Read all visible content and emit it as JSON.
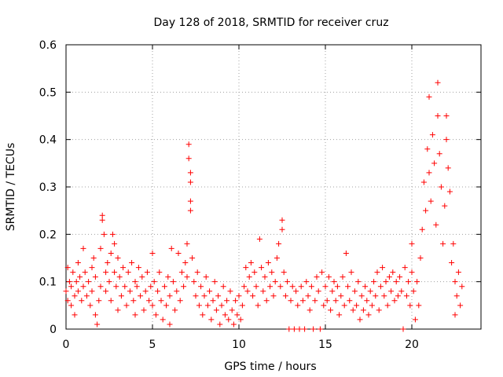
{
  "chart_data": {
    "type": "scatter",
    "title": "Day 128 of 2018, SRMTID for receiver cruz",
    "xlabel": "GPS time / hours",
    "ylabel": "SRMTID / TECUs",
    "xlim": [
      0,
      24
    ],
    "ylim": [
      0,
      0.6
    ],
    "grid": true,
    "xticks": [
      0,
      5,
      10,
      15,
      20
    ],
    "xtick_labels": [
      "0",
      "5",
      "10",
      "15",
      "20"
    ],
    "yticks": [
      0,
      0.1,
      0.2,
      0.3,
      0.4,
      0.5,
      0.6
    ],
    "ytick_labels": [
      "0",
      "0.1",
      "0.2",
      "0.3",
      "0.4",
      "0.5",
      "0.6"
    ],
    "marker": "plus",
    "marker_color": "#ff0000",
    "series": [
      {
        "name": "SRMTID",
        "points": [
          [
            0.0,
            0.08
          ],
          [
            0.1,
            0.13
          ],
          [
            0.1,
            0.06
          ],
          [
            0.2,
            0.1
          ],
          [
            0.3,
            0.05
          ],
          [
            0.3,
            0.09
          ],
          [
            0.4,
            0.12
          ],
          [
            0.5,
            0.07
          ],
          [
            0.5,
            0.03
          ],
          [
            0.6,
            0.1
          ],
          [
            0.7,
            0.14
          ],
          [
            0.7,
            0.08
          ],
          [
            0.8,
            0.11
          ],
          [
            0.9,
            0.06
          ],
          [
            1.0,
            0.17
          ],
          [
            1.0,
            0.09
          ],
          [
            1.1,
            0.12
          ],
          [
            1.2,
            0.07
          ],
          [
            1.3,
            0.1
          ],
          [
            1.4,
            0.05
          ],
          [
            1.5,
            0.13
          ],
          [
            1.5,
            0.08
          ],
          [
            1.6,
            0.15
          ],
          [
            1.7,
            0.03
          ],
          [
            1.7,
            0.11
          ],
          [
            1.8,
            0.01
          ],
          [
            1.9,
            0.06
          ],
          [
            2.0,
            0.09
          ],
          [
            2.0,
            0.17
          ],
          [
            2.1,
            0.24
          ],
          [
            2.1,
            0.23
          ],
          [
            2.2,
            0.2
          ],
          [
            2.3,
            0.12
          ],
          [
            2.3,
            0.08
          ],
          [
            2.4,
            0.14
          ],
          [
            2.5,
            0.1
          ],
          [
            2.6,
            0.16
          ],
          [
            2.6,
            0.06
          ],
          [
            2.7,
            0.2
          ],
          [
            2.8,
            0.18
          ],
          [
            2.8,
            0.12
          ],
          [
            2.9,
            0.09
          ],
          [
            3.0,
            0.15
          ],
          [
            3.0,
            0.04
          ],
          [
            3.1,
            0.11
          ],
          [
            3.2,
            0.07
          ],
          [
            3.3,
            0.13
          ],
          [
            3.4,
            0.09
          ],
          [
            3.5,
            0.05
          ],
          [
            3.6,
            0.12
          ],
          [
            3.7,
            0.08
          ],
          [
            3.8,
            0.14
          ],
          [
            3.9,
            0.06
          ],
          [
            4.0,
            0.1
          ],
          [
            4.0,
            0.03
          ],
          [
            4.1,
            0.09
          ],
          [
            4.2,
            0.13
          ],
          [
            4.3,
            0.07
          ],
          [
            4.4,
            0.11
          ],
          [
            4.5,
            0.04
          ],
          [
            4.6,
            0.08
          ],
          [
            4.7,
            0.12
          ],
          [
            4.8,
            0.06
          ],
          [
            4.9,
            0.09
          ],
          [
            5.0,
            0.16
          ],
          [
            5.0,
            0.05
          ],
          [
            5.1,
            0.1
          ],
          [
            5.2,
            0.03
          ],
          [
            5.3,
            0.08
          ],
          [
            5.4,
            0.12
          ],
          [
            5.5,
            0.06
          ],
          [
            5.6,
            0.02
          ],
          [
            5.7,
            0.09
          ],
          [
            5.8,
            0.05
          ],
          [
            5.9,
            0.11
          ],
          [
            6.0,
            0.01
          ],
          [
            6.0,
            0.07
          ],
          [
            6.1,
            0.17
          ],
          [
            6.2,
            0.1
          ],
          [
            6.3,
            0.04
          ],
          [
            6.4,
            0.08
          ],
          [
            6.5,
            0.16
          ],
          [
            6.6,
            0.06
          ],
          [
            6.7,
            0.12
          ],
          [
            6.8,
            0.09
          ],
          [
            6.9,
            0.14
          ],
          [
            7.0,
            0.18
          ],
          [
            7.0,
            0.11
          ],
          [
            7.1,
            0.39
          ],
          [
            7.1,
            0.36
          ],
          [
            7.2,
            0.33
          ],
          [
            7.2,
            0.27
          ],
          [
            7.2,
            0.25
          ],
          [
            7.2,
            0.31
          ],
          [
            7.3,
            0.15
          ],
          [
            7.4,
            0.1
          ],
          [
            7.5,
            0.07
          ],
          [
            7.6,
            0.12
          ],
          [
            7.7,
            0.05
          ],
          [
            7.8,
            0.09
          ],
          [
            7.9,
            0.03
          ],
          [
            8.0,
            0.07
          ],
          [
            8.1,
            0.11
          ],
          [
            8.2,
            0.05
          ],
          [
            8.3,
            0.08
          ],
          [
            8.4,
            0.02
          ],
          [
            8.5,
            0.06
          ],
          [
            8.6,
            0.1
          ],
          [
            8.7,
            0.04
          ],
          [
            8.8,
            0.07
          ],
          [
            8.9,
            0.01
          ],
          [
            9.0,
            0.05
          ],
          [
            9.1,
            0.09
          ],
          [
            9.2,
            0.03
          ],
          [
            9.3,
            0.06
          ],
          [
            9.4,
            0.02
          ],
          [
            9.5,
            0.08
          ],
          [
            9.6,
            0.04
          ],
          [
            9.7,
            0.01
          ],
          [
            9.8,
            0.06
          ],
          [
            9.9,
            0.03
          ],
          [
            10.0,
            0.07
          ],
          [
            10.1,
            0.02
          ],
          [
            10.2,
            0.05
          ],
          [
            10.3,
            0.09
          ],
          [
            10.4,
            0.13
          ],
          [
            10.5,
            0.08
          ],
          [
            10.6,
            0.11
          ],
          [
            10.7,
            0.14
          ],
          [
            10.8,
            0.07
          ],
          [
            10.9,
            0.12
          ],
          [
            11.0,
            0.09
          ],
          [
            11.1,
            0.05
          ],
          [
            11.2,
            0.19
          ],
          [
            11.3,
            0.13
          ],
          [
            11.4,
            0.08
          ],
          [
            11.5,
            0.11
          ],
          [
            11.6,
            0.06
          ],
          [
            11.7,
            0.14
          ],
          [
            11.8,
            0.09
          ],
          [
            11.9,
            0.12
          ],
          [
            12.0,
            0.07
          ],
          [
            12.1,
            0.1
          ],
          [
            12.2,
            0.15
          ],
          [
            12.3,
            0.18
          ],
          [
            12.4,
            0.09
          ],
          [
            12.5,
            0.21
          ],
          [
            12.5,
            0.23
          ],
          [
            12.6,
            0.12
          ],
          [
            12.7,
            0.07
          ],
          [
            12.8,
            0.1
          ],
          [
            12.9,
            0.0
          ],
          [
            13.0,
            0.06
          ],
          [
            13.1,
            0.09
          ],
          [
            13.2,
            0.0
          ],
          [
            13.3,
            0.08
          ],
          [
            13.4,
            0.05
          ],
          [
            13.5,
            0.0
          ],
          [
            13.6,
            0.09
          ],
          [
            13.7,
            0.06
          ],
          [
            13.8,
            0.0
          ],
          [
            13.9,
            0.1
          ],
          [
            14.0,
            0.07
          ],
          [
            14.1,
            0.04
          ],
          [
            14.2,
            0.09
          ],
          [
            14.3,
            0.0
          ],
          [
            14.4,
            0.06
          ],
          [
            14.5,
            0.11
          ],
          [
            14.6,
            0.08
          ],
          [
            14.7,
            0.0
          ],
          [
            14.8,
            0.12
          ],
          [
            14.9,
            0.05
          ],
          [
            15.0,
            0.09
          ],
          [
            15.1,
            0.06
          ],
          [
            15.2,
            0.11
          ],
          [
            15.3,
            0.04
          ],
          [
            15.4,
            0.08
          ],
          [
            15.5,
            0.1
          ],
          [
            15.6,
            0.06
          ],
          [
            15.7,
            0.09
          ],
          [
            15.8,
            0.03
          ],
          [
            15.9,
            0.07
          ],
          [
            16.0,
            0.11
          ],
          [
            16.1,
            0.05
          ],
          [
            16.2,
            0.16
          ],
          [
            16.3,
            0.09
          ],
          [
            16.4,
            0.06
          ],
          [
            16.5,
            0.12
          ],
          [
            16.6,
            0.04
          ],
          [
            16.7,
            0.08
          ],
          [
            16.8,
            0.05
          ],
          [
            16.9,
            0.1
          ],
          [
            17.0,
            0.02
          ],
          [
            17.1,
            0.07
          ],
          [
            17.2,
            0.04
          ],
          [
            17.3,
            0.09
          ],
          [
            17.4,
            0.06
          ],
          [
            17.5,
            0.03
          ],
          [
            17.6,
            0.08
          ],
          [
            17.7,
            0.05
          ],
          [
            17.8,
            0.1
          ],
          [
            17.9,
            0.07
          ],
          [
            18.0,
            0.12
          ],
          [
            18.1,
            0.04
          ],
          [
            18.2,
            0.09
          ],
          [
            18.3,
            0.13
          ],
          [
            18.4,
            0.07
          ],
          [
            18.5,
            0.1
          ],
          [
            18.6,
            0.05
          ],
          [
            18.7,
            0.11
          ],
          [
            18.8,
            0.08
          ],
          [
            18.9,
            0.12
          ],
          [
            19.0,
            0.06
          ],
          [
            19.1,
            0.1
          ],
          [
            19.2,
            0.07
          ],
          [
            19.3,
            0.11
          ],
          [
            19.4,
            0.08
          ],
          [
            19.5,
            0.0
          ],
          [
            19.6,
            0.13
          ],
          [
            19.7,
            0.07
          ],
          [
            19.8,
            0.1
          ],
          [
            19.9,
            0.05
          ],
          [
            20.0,
            0.12
          ],
          [
            20.0,
            0.18
          ],
          [
            20.1,
            0.08
          ],
          [
            20.2,
            0.02
          ],
          [
            20.3,
            0.1
          ],
          [
            20.4,
            0.05
          ],
          [
            20.5,
            0.15
          ],
          [
            20.6,
            0.21
          ],
          [
            20.7,
            0.31
          ],
          [
            20.8,
            0.25
          ],
          [
            20.9,
            0.38
          ],
          [
            21.0,
            0.33
          ],
          [
            21.0,
            0.49
          ],
          [
            21.1,
            0.27
          ],
          [
            21.2,
            0.41
          ],
          [
            21.3,
            0.35
          ],
          [
            21.4,
            0.22
          ],
          [
            21.5,
            0.45
          ],
          [
            21.5,
            0.52
          ],
          [
            21.6,
            0.37
          ],
          [
            21.7,
            0.3
          ],
          [
            21.8,
            0.18
          ],
          [
            21.9,
            0.26
          ],
          [
            22.0,
            0.45
          ],
          [
            22.0,
            0.4
          ],
          [
            22.1,
            0.34
          ],
          [
            22.2,
            0.29
          ],
          [
            22.3,
            0.14
          ],
          [
            22.4,
            0.18
          ],
          [
            22.5,
            0.1
          ],
          [
            22.5,
            0.03
          ],
          [
            22.6,
            0.07
          ],
          [
            22.7,
            0.12
          ],
          [
            22.8,
            0.05
          ],
          [
            22.9,
            0.09
          ]
        ]
      }
    ]
  }
}
